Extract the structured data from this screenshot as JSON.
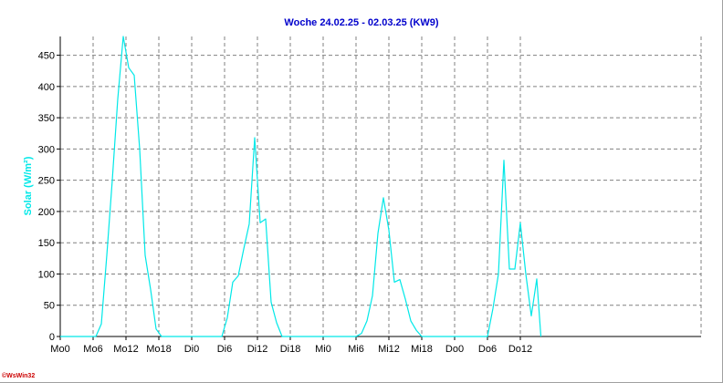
{
  "chart_data": {
    "type": "line",
    "title": "Woche 24.02.25 - 02.03.25 (KW9)",
    "ylabel": "Solar (W/m²)",
    "xlabel": "",
    "ylim": [
      0,
      480
    ],
    "xlim": [
      0,
      117
    ],
    "grid": true,
    "yticks": [
      0,
      50,
      100,
      150,
      200,
      250,
      300,
      350,
      400,
      450
    ],
    "xticks": [
      {
        "x": 0,
        "label": "Mo0"
      },
      {
        "x": 6,
        "label": "Mo6"
      },
      {
        "x": 12,
        "label": "Mo12"
      },
      {
        "x": 18,
        "label": "Mo18"
      },
      {
        "x": 24,
        "label": "Di0"
      },
      {
        "x": 30,
        "label": "Di6"
      },
      {
        "x": 36,
        "label": "Di12"
      },
      {
        "x": 42,
        "label": "Di18"
      },
      {
        "x": 48,
        "label": "Mi0"
      },
      {
        "x": 54,
        "label": "Mi6"
      },
      {
        "x": 60,
        "label": "Mi12"
      },
      {
        "x": 66,
        "label": "Mi18"
      },
      {
        "x": 72,
        "label": "Do0"
      },
      {
        "x": 78,
        "label": "Do6"
      },
      {
        "x": 84,
        "label": "Do12"
      }
    ],
    "series": [
      {
        "color": "#00e8e8",
        "points": [
          [
            0,
            0
          ],
          [
            6.5,
            0
          ],
          [
            7.5,
            20
          ],
          [
            8.5,
            130
          ],
          [
            9.5,
            250
          ],
          [
            10.5,
            380
          ],
          [
            11.5,
            480
          ],
          [
            12.5,
            430
          ],
          [
            13.5,
            418
          ],
          [
            14.5,
            300
          ],
          [
            15.5,
            130
          ],
          [
            16.5,
            75
          ],
          [
            17.5,
            12
          ],
          [
            18.5,
            0
          ],
          [
            29.5,
            0
          ],
          [
            30.5,
            30
          ],
          [
            31.5,
            87
          ],
          [
            32.5,
            97
          ],
          [
            33.5,
            140
          ],
          [
            34.5,
            180
          ],
          [
            35.5,
            318
          ],
          [
            36.5,
            182
          ],
          [
            37.5,
            188
          ],
          [
            38.5,
            55
          ],
          [
            39.5,
            22
          ],
          [
            40.5,
            0
          ],
          [
            54,
            0
          ],
          [
            55,
            5
          ],
          [
            56,
            25
          ],
          [
            57,
            65
          ],
          [
            58,
            165
          ],
          [
            59,
            222
          ],
          [
            60,
            170
          ],
          [
            61,
            87
          ],
          [
            62,
            91
          ],
          [
            63,
            60
          ],
          [
            64,
            25
          ],
          [
            65,
            10
          ],
          [
            66,
            0
          ],
          [
            78,
            0
          ],
          [
            79,
            45
          ],
          [
            80,
            100
          ],
          [
            81,
            282
          ],
          [
            82,
            108
          ],
          [
            83,
            108
          ],
          [
            84,
            182
          ],
          [
            85,
            100
          ],
          [
            86,
            33
          ],
          [
            87,
            92
          ],
          [
            87.75,
            0
          ]
        ]
      }
    ]
  },
  "colors": {
    "title": "#0000cc",
    "ylabel": "#00e8e8",
    "grid": "#808080",
    "axis": "#000000",
    "watermark": "#cc0000"
  },
  "watermark": "©WsWin32"
}
